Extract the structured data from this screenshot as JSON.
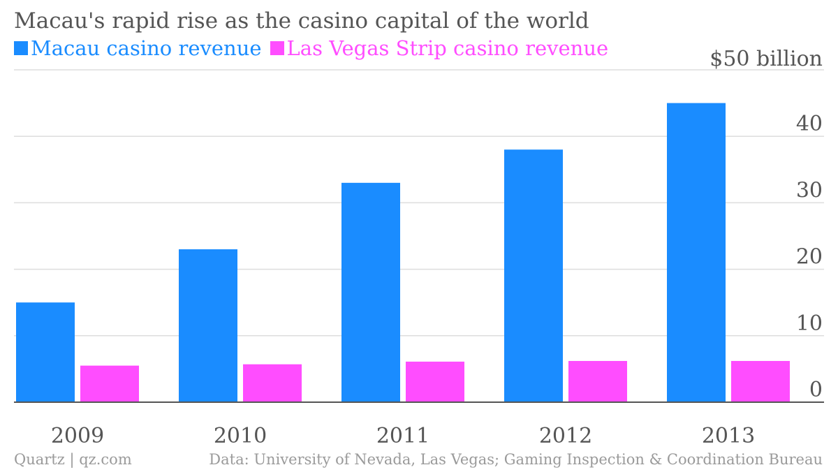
{
  "chart_data": {
    "type": "bar",
    "title": "Macau's rapid rise as the casino capital of the world",
    "categories": [
      "2009",
      "2010",
      "2011",
      "2012",
      "2013"
    ],
    "series": [
      {
        "name": "Macau casino revenue",
        "color": "#1a8cff",
        "values": [
          15.0,
          23.0,
          33.0,
          38.0,
          45.0
        ]
      },
      {
        "name": "Las Vegas Strip casino revenue",
        "color": "#ff4dff",
        "values": [
          5.5,
          5.7,
          6.1,
          6.2,
          6.2
        ]
      }
    ],
    "y_ticks": [
      "0",
      "10",
      "20",
      "30",
      "40",
      "$50 billion"
    ],
    "y_tick_values": [
      0,
      10,
      20,
      30,
      40,
      50
    ],
    "ylim": [
      0,
      50
    ],
    "xlabel": "",
    "ylabel": "",
    "grid": true,
    "legend_position": "top-left"
  },
  "footer": {
    "source_left": "Quartz | qz.com",
    "source_right": "Data: University of Nevada, Las Vegas; Gaming Inspection & Coordination Bureau"
  }
}
